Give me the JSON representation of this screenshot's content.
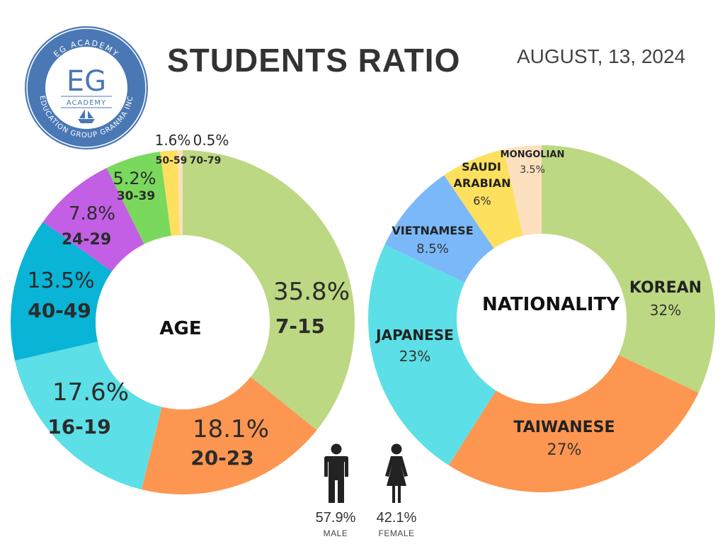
{
  "header": {
    "title": "STUDENTS RATIO",
    "date": "AUGUST, 13, 2024"
  },
  "logo": {
    "top_text": "EG ACADEMY",
    "monogram": "EG",
    "sub_text": "ACADEMY",
    "bottom_text": "EDUCATION GROUP GRANMA INC",
    "color": "#4a78b5"
  },
  "chart_data": [
    {
      "type": "pie",
      "title": "AGE",
      "slices": [
        {
          "label": "7-15",
          "pct_label": "35.8%",
          "value": 35.8,
          "color": "#bcd882"
        },
        {
          "label": "20-23",
          "pct_label": "18.1%",
          "value": 18.1,
          "color": "#fd9651"
        },
        {
          "label": "16-19",
          "pct_label": "17.6%",
          "value": 17.6,
          "color": "#5cdfe6"
        },
        {
          "label": "40-49",
          "pct_label": "13.5%",
          "value": 13.5,
          "color": "#09b4d6"
        },
        {
          "label": "24-29",
          "pct_label": "7.8%",
          "value": 7.8,
          "color": "#c25fe4"
        },
        {
          "label": "30-39",
          "pct_label": "5.2%",
          "value": 5.2,
          "color": "#7ad95c"
        },
        {
          "label": "50-59",
          "pct_label": "1.6%",
          "value": 1.6,
          "color": "#fde05e"
        },
        {
          "label": "70-79",
          "pct_label": "0.5%",
          "value": 0.5,
          "color": "#fde0bf"
        }
      ]
    },
    {
      "type": "pie",
      "title": "NATIONALITY",
      "slices": [
        {
          "label": "KOREAN",
          "pct_label": "32%",
          "value": 32,
          "color": "#bcd882"
        },
        {
          "label": "TAIWANESE",
          "pct_label": "27%",
          "value": 27,
          "color": "#fd9651"
        },
        {
          "label": "JAPANESE",
          "pct_label": "23%",
          "value": 23,
          "color": "#5cdfe6"
        },
        {
          "label": "VIETNAMESE",
          "pct_label": "8.5%",
          "value": 8.5,
          "color": "#7bb8fa"
        },
        {
          "label": "SAUDI ARABIAN",
          "pct_label": "6%",
          "value": 6,
          "color": "#fde05e"
        },
        {
          "label": "MONGOLIAN",
          "pct_label": "3.5%",
          "value": 3.5,
          "color": "#fde0bf"
        }
      ]
    }
  ],
  "gender": {
    "male": {
      "pct": "57.9%",
      "label": "MALE"
    },
    "female": {
      "pct": "42.1%",
      "label": "FEMALE"
    }
  }
}
